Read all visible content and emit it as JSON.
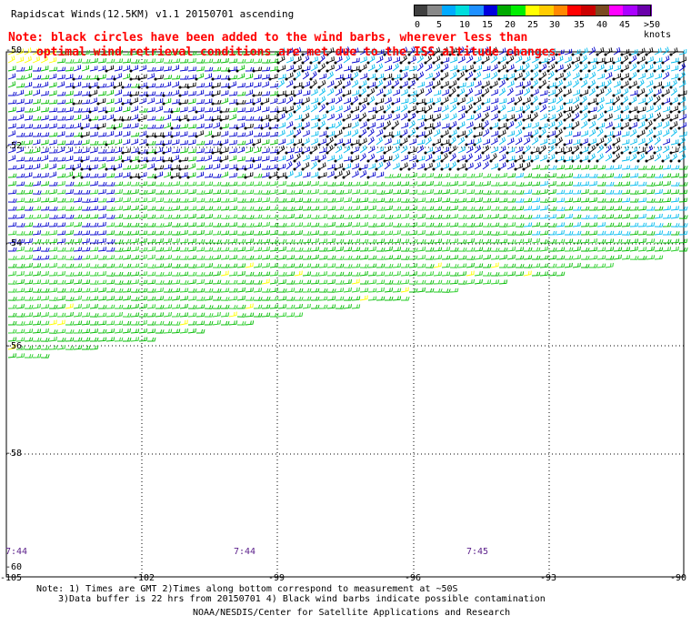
{
  "title": "Rapidscat Winds(12.5KM) v1.1 20150701 ascending",
  "colorbar": {
    "ticks": [
      "0",
      "5",
      "10",
      "15",
      "20",
      "25",
      "30",
      "35",
      "40",
      "45",
      ">50 knots"
    ],
    "colors": [
      "#404040",
      "#888888",
      "#00aaff",
      "#00dddd",
      "#1e90ff",
      "#0000dd",
      "#00aa00",
      "#00ee00",
      "#ffff00",
      "#ffcc00",
      "#ff8800",
      "#ff0000",
      "#cc0000",
      "#7a4a20",
      "#ff00ff",
      "#aa00ff",
      "#6a00aa"
    ]
  },
  "note": {
    "line1": "Note: black circles have been added to the wind barbs, wherever less than",
    "line2": "optimal wind retrieval conditions are met due to the ISS altitude changes."
  },
  "map": {
    "lat_labels": [
      "-50",
      "-52",
      "-54",
      "-56",
      "-58",
      "-60"
    ],
    "lon_labels": [
      "-105",
      "-102",
      "-99",
      "-96",
      "-93",
      "-90"
    ],
    "time_labels": [
      "7:44",
      "7:44",
      "7:45"
    ],
    "wind_speed_colors": {
      "calm": "#ffff00",
      "light": "#00bb00",
      "moderate": "#22cc22",
      "fresh": "#00bbee",
      "strong": "#0000cc",
      "flagged": "#000000"
    }
  },
  "footer": {
    "line1": "Note: 1) Times are GMT 2)Times along bottom correspond to measurement at ~50S",
    "line2": "3)Data buffer is 22 hrs from 20150701 4) Black wind barbs indicate possible contamination",
    "credit": "NOAA/NESDIS/Center for Satellite Applications and Research"
  }
}
